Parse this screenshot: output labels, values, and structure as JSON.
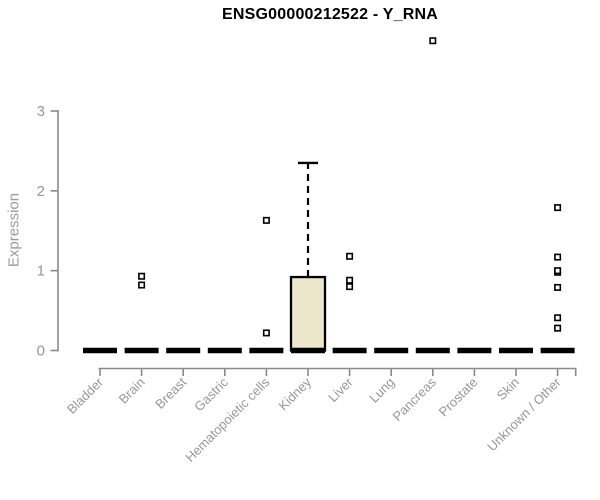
{
  "chart_data": {
    "type": "boxplot",
    "title": "ENSG00000212522 - Y_RNA",
    "ylabel": "Expression",
    "xlabel": "",
    "ylim": [
      0,
      3
    ],
    "yticks": [
      0,
      1,
      2,
      3
    ],
    "grid": false,
    "legend": false,
    "categories": [
      "Bladder",
      "Brain",
      "Breast",
      "Gastric",
      "Hematopoietic cells",
      "Kidney",
      "Liver",
      "Lung",
      "Pancreas",
      "Prostate",
      "Skin",
      "Unknown / Other"
    ],
    "series": [
      {
        "category": "Bladder",
        "whisker_low": 0,
        "q1": 0,
        "median": 0,
        "q3": 0,
        "whisker_high": 0,
        "outliers": []
      },
      {
        "category": "Brain",
        "whisker_low": 0,
        "q1": 0,
        "median": 0,
        "q3": 0,
        "whisker_high": 0,
        "outliers": [
          0.82,
          0.93
        ]
      },
      {
        "category": "Breast",
        "whisker_low": 0,
        "q1": 0,
        "median": 0,
        "q3": 0,
        "whisker_high": 0,
        "outliers": []
      },
      {
        "category": "Gastric",
        "whisker_low": 0,
        "q1": 0,
        "median": 0,
        "q3": 0,
        "whisker_high": 0,
        "outliers": []
      },
      {
        "category": "Hematopoietic cells",
        "whisker_low": 0,
        "q1": 0,
        "median": 0,
        "q3": 0,
        "whisker_high": 0,
        "outliers": [
          0.22,
          1.63
        ]
      },
      {
        "category": "Kidney",
        "whisker_low": 0,
        "q1": 0,
        "median": 0,
        "q3": 0.92,
        "whisker_high": 2.35,
        "outliers": []
      },
      {
        "category": "Liver",
        "whisker_low": 0,
        "q1": 0,
        "median": 0,
        "q3": 0,
        "whisker_high": 0,
        "outliers": [
          0.8,
          0.88,
          1.18
        ]
      },
      {
        "category": "Lung",
        "whisker_low": 0,
        "q1": 0,
        "median": 0,
        "q3": 0,
        "whisker_high": 0,
        "outliers": []
      },
      {
        "category": "Pancreas",
        "whisker_low": 0,
        "q1": 0,
        "median": 0,
        "q3": 0,
        "whisker_high": 0,
        "outliers": [
          3.88
        ]
      },
      {
        "category": "Prostate",
        "whisker_low": 0,
        "q1": 0,
        "median": 0,
        "q3": 0,
        "whisker_high": 0,
        "outliers": []
      },
      {
        "category": "Skin",
        "whisker_low": 0,
        "q1": 0,
        "median": 0,
        "q3": 0,
        "whisker_high": 0,
        "outliers": []
      },
      {
        "category": "Unknown / Other",
        "whisker_low": 0,
        "q1": 0,
        "median": 0,
        "q3": 0,
        "whisker_high": 0,
        "outliers": [
          0.28,
          0.41,
          0.79,
          0.98,
          1.0,
          1.17,
          1.79
        ]
      }
    ],
    "colors": {
      "box_fill": "#ece7cb",
      "box_stroke": "#000000",
      "outlier_fill": "#ffffff",
      "outlier_stroke": "#000000",
      "axis": "#8a8a8a",
      "tick_label": "#979797",
      "title": "#000000",
      "background": "#ffffff"
    }
  }
}
